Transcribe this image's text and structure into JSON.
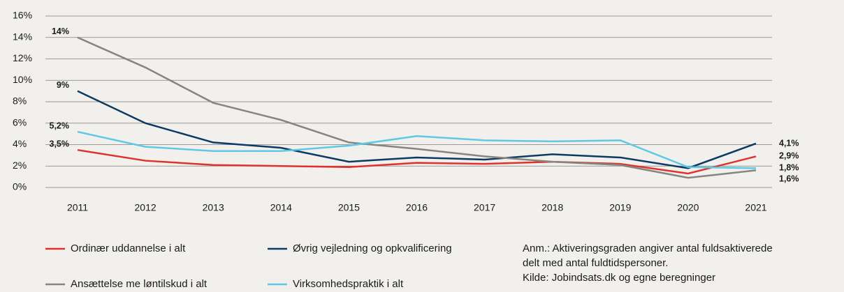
{
  "chart_data": {
    "type": "line",
    "categories": [
      "2011",
      "2012",
      "2013",
      "2014",
      "2015",
      "2016",
      "2017",
      "2018",
      "2019",
      "2020",
      "2021"
    ],
    "series": [
      {
        "name": "Ordinær uddannelse i alt",
        "color": "#e0312d",
        "values": [
          3.5,
          2.5,
          2.1,
          2.0,
          1.9,
          2.3,
          2.2,
          2.4,
          2.2,
          1.3,
          2.9
        ],
        "value_labels": [
          "3,5%",
          null,
          null,
          null,
          null,
          null,
          null,
          null,
          null,
          null,
          "2,9%"
        ]
      },
      {
        "name": "Øvrig vejledning og opkvalificering",
        "color": "#0d3a62",
        "values": [
          9,
          6.0,
          4.2,
          3.7,
          2.4,
          2.8,
          2.6,
          3.1,
          2.8,
          1.8,
          4.1
        ],
        "value_labels": [
          "9%",
          null,
          null,
          null,
          null,
          null,
          null,
          null,
          null,
          null,
          "4,1%"
        ]
      },
      {
        "name": "Ansættelse me løntilskud i alt",
        "color": "#878580",
        "values": [
          14,
          11.2,
          7.9,
          6.3,
          4.2,
          3.6,
          2.9,
          2.4,
          2.1,
          0.9,
          1.6
        ],
        "value_labels": [
          "14%",
          null,
          null,
          null,
          null,
          null,
          null,
          null,
          null,
          null,
          "1,6%"
        ]
      },
      {
        "name": "Virksomhedspraktik i alt",
        "color": "#5ec8e5",
        "values": [
          5.2,
          3.8,
          3.4,
          3.4,
          3.9,
          4.8,
          4.4,
          4.3,
          4.4,
          1.9,
          1.8
        ],
        "value_labels": [
          "5,2%",
          null,
          null,
          null,
          null,
          null,
          null,
          null,
          null,
          null,
          "1,8%"
        ]
      }
    ],
    "ylim": [
      0,
      16
    ],
    "yticks": [
      {
        "value": 0,
        "label": "0%"
      },
      {
        "value": 2,
        "label": "2%"
      },
      {
        "value": 4,
        "label": "4%"
      },
      {
        "value": 6,
        "label": "6%"
      },
      {
        "value": 8,
        "label": "8%"
      },
      {
        "value": 10,
        "label": "10%"
      },
      {
        "value": 12,
        "label": "12%"
      },
      {
        "value": 14,
        "label": "14%"
      },
      {
        "value": 16,
        "label": "16%"
      }
    ],
    "grid": true,
    "annotations": [
      "Anm.: Aktiveringsgraden angiver antal fuldsaktiverede",
      "delt med antal fuldtidspersoner.",
      "Kilde: Jobindsats.dk og egne beregninger"
    ]
  }
}
